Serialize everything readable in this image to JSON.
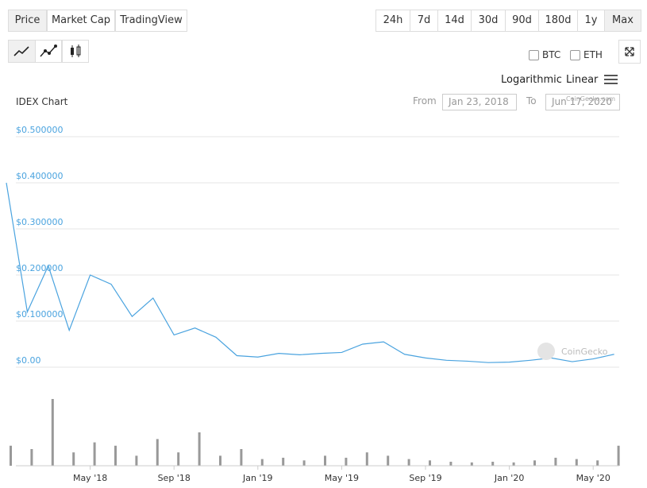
{
  "tabs": [
    "Price",
    "Market Cap",
    "TradingView"
  ],
  "ranges": [
    "24h",
    "7d",
    "14d",
    "30d",
    "90d",
    "180d",
    "1y",
    "Max"
  ],
  "toggles": [
    "BTC",
    "ETH"
  ],
  "scale_options": [
    "Logarithmic",
    "Linear"
  ],
  "from_label": "From",
  "from_date": "Jan 23, 2018",
  "to_label": "To",
  "to_date": "Jun 17, 2020",
  "watermark": "CoinGecko",
  "small_watermark": "CoinGecko.com",
  "chart_data": {
    "type": "line",
    "title": "IDEX Chart",
    "color": "#4aa3df",
    "volume_color": "#999999",
    "x": [
      "2018-01",
      "2018-02",
      "2018-03",
      "2018-04",
      "2018-05",
      "2018-06",
      "2018-07",
      "2018-08",
      "2018-09",
      "2018-10",
      "2018-11",
      "2018-12",
      "2019-01",
      "2019-02",
      "2019-03",
      "2019-04",
      "2019-05",
      "2019-06",
      "2019-07",
      "2019-08",
      "2019-09",
      "2019-10",
      "2019-11",
      "2019-12",
      "2020-01",
      "2020-02",
      "2020-03",
      "2020-04",
      "2020-05",
      "2020-06"
    ],
    "values": [
      0.4,
      0.12,
      0.22,
      0.08,
      0.2,
      0.18,
      0.11,
      0.15,
      0.07,
      0.085,
      0.065,
      0.025,
      0.022,
      0.03,
      0.027,
      0.03,
      0.032,
      0.05,
      0.055,
      0.028,
      0.02,
      0.015,
      0.013,
      0.01,
      0.011,
      0.015,
      0.02,
      0.012,
      0.018,
      0.028
    ],
    "volume": [
      30,
      25,
      100,
      20,
      35,
      30,
      15,
      40,
      20,
      50,
      15,
      25,
      10,
      12,
      8,
      15,
      12,
      20,
      15,
      10,
      8,
      6,
      5,
      6,
      5,
      8,
      12,
      10,
      8,
      30
    ],
    "vlim": [
      0,
      100
    ],
    "xlim": [
      "2018-01",
      "2020-07"
    ],
    "xticks": [
      {
        "value": "2018-05",
        "label": "May '18"
      },
      {
        "value": "2018-09",
        "label": "Sep '18"
      },
      {
        "value": "2019-01",
        "label": "Jan '19"
      },
      {
        "value": "2019-05",
        "label": "May '19"
      },
      {
        "value": "2019-09",
        "label": "Sep '19"
      },
      {
        "value": "2020-01",
        "label": "Jan '20"
      },
      {
        "value": "2020-05",
        "label": "May '20"
      }
    ],
    "ylim": [
      0,
      0.5
    ],
    "yticks": [
      {
        "value": 0,
        "label": "$0.00"
      },
      {
        "value": 0.1,
        "label": "$0.100000"
      },
      {
        "value": 0.2,
        "label": "$0.200000"
      },
      {
        "value": 0.3,
        "label": "$0.300000"
      },
      {
        "value": 0.4,
        "label": "$0.400000"
      },
      {
        "value": 0.5,
        "label": "$0.500000"
      }
    ],
    "grid": true
  }
}
